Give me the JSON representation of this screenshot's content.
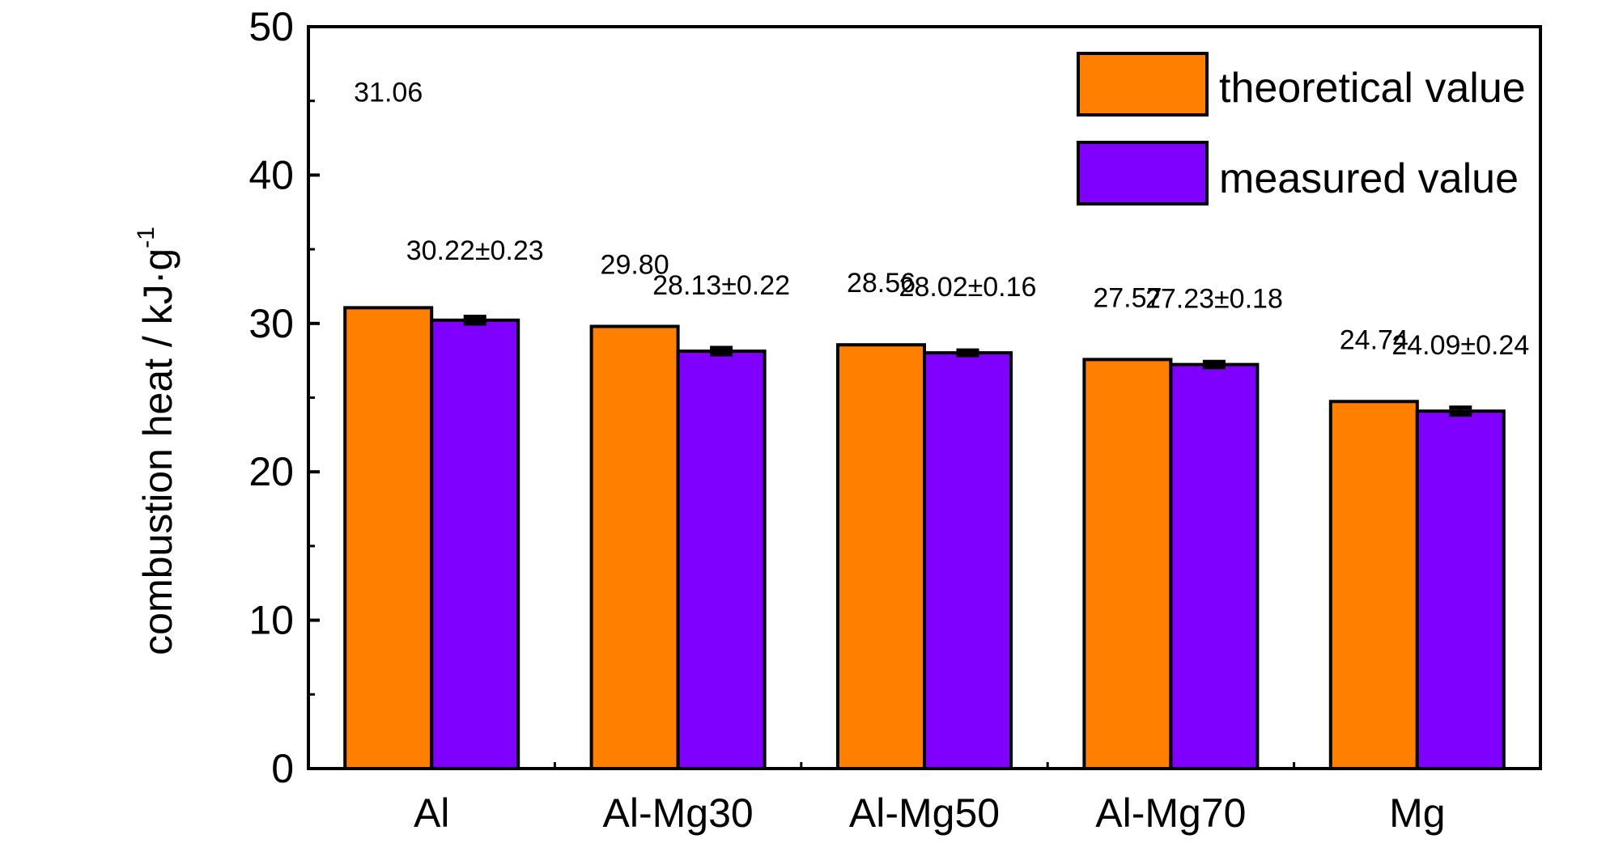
{
  "chart_data": {
    "type": "bar",
    "categories": [
      "Al",
      "Al-Mg30",
      "Al-Mg50",
      "Al-Mg70",
      "Mg"
    ],
    "series": [
      {
        "name": "theoretical value",
        "color": "#FF8000",
        "values": [
          31.06,
          29.8,
          28.56,
          27.57,
          24.74
        ],
        "labels": [
          "31.06",
          "29.80",
          "28.56",
          "27.57",
          "24.74"
        ]
      },
      {
        "name": "measured value",
        "color": "#8000FF",
        "values": [
          30.22,
          28.13,
          28.02,
          27.23,
          24.09
        ],
        "errors": [
          0.23,
          0.22,
          0.16,
          0.18,
          0.24
        ],
        "labels": [
          "30.22±0.23",
          "28.13±0.22",
          "28.02±0.16",
          "27.23±0.18",
          "24.09±0.24"
        ]
      }
    ],
    "ylabel": "combustion heat / kJ·g",
    "ylabel_superscript": "-1",
    "ylim": [
      0,
      50
    ],
    "yticks": [
      "0",
      "10",
      "20",
      "30",
      "40",
      "50"
    ],
    "grid": false,
    "legend_position": "top-right"
  }
}
